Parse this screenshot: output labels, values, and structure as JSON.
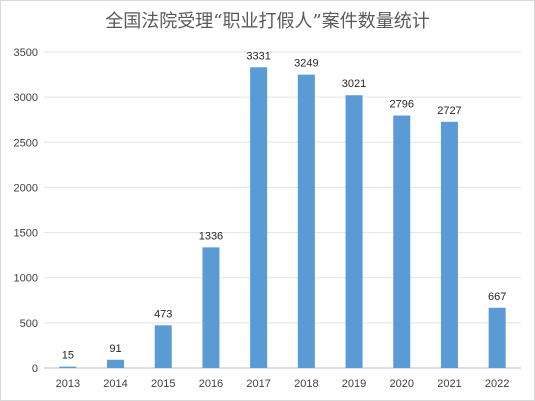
{
  "chart_data": {
    "type": "bar",
    "title": "全国法院受理“职业打假人”案件数量统计",
    "categories": [
      "2013",
      "2014",
      "2015",
      "2016",
      "2017",
      "2018",
      "2019",
      "2020",
      "2021",
      "2022"
    ],
    "values": [
      15,
      91,
      473,
      1336,
      3331,
      3249,
      3021,
      2796,
      2727,
      667
    ],
    "data_labels": [
      "15",
      "91",
      "473",
      "1336",
      "3331",
      "3249",
      "3021",
      "2796",
      "2727",
      "667"
    ],
    "y_ticks": [
      "0",
      "500",
      "1000",
      "1500",
      "2000",
      "2500",
      "3000",
      "3500"
    ],
    "ylim": [
      0,
      3500
    ],
    "xlabel": "",
    "ylabel": "",
    "grid": true,
    "legend": "none",
    "bar_color": "#5b9bd5"
  }
}
